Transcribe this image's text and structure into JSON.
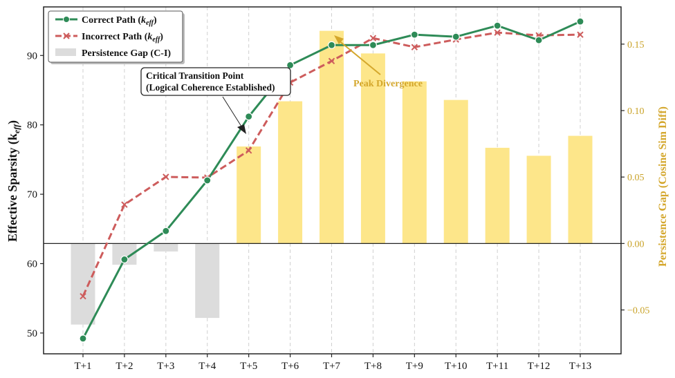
{
  "chart_data": {
    "type": "line+bar",
    "categories": [
      "T+1",
      "T+2",
      "T+3",
      "T+4",
      "T+5",
      "T+6",
      "T+7",
      "T+8",
      "T+9",
      "T+10",
      "T+11",
      "T+12",
      "T+13"
    ],
    "series": [
      {
        "name": "Correct Path (k_eff)",
        "axis": "left",
        "type": "line",
        "color": "#2e8b57",
        "values": [
          49.2,
          60.6,
          64.7,
          72.0,
          81.2,
          88.6,
          91.5,
          91.5,
          93.0,
          92.7,
          94.3,
          92.2,
          94.9
        ]
      },
      {
        "name": "Incorrect Path (k_eff)",
        "axis": "left",
        "type": "line",
        "color": "#cd5c5c",
        "values": [
          55.3,
          68.5,
          72.5,
          72.4,
          76.3,
          86.1,
          89.2,
          92.5,
          91.2,
          92.3,
          93.3,
          92.9,
          93.0
        ]
      },
      {
        "name": "Persistence Gap (C-I)",
        "axis": "right",
        "type": "bar",
        "color_pos": "#fde68a",
        "color_neg": "#dcdcdc",
        "values": [
          -0.061,
          -0.016,
          -0.006,
          -0.056,
          0.073,
          0.107,
          0.16,
          0.143,
          0.122,
          0.108,
          0.072,
          0.066,
          0.081
        ]
      }
    ],
    "ylabel_left": "Effective Sparsity (k",
    "ylabel_left_sub": "eff",
    "ylabel_left_close": ")",
    "ylabel_right": "Persistence Gap (Cosine Sim Diff)",
    "ylim_left": [
      47,
      97
    ],
    "ylim_right": [
      -0.083,
      0.178
    ],
    "yticks_left": [
      50,
      60,
      70,
      80,
      90
    ],
    "yticks_right": [
      -0.05,
      0.0,
      0.05,
      0.1,
      0.15
    ],
    "yticks_right_labels": [
      "−0.05",
      "0.00",
      "0.05",
      "0.10",
      "0.15"
    ],
    "grid": "vertical-dashed",
    "legend": {
      "position": "top-left",
      "entries": [
        {
          "label": "Correct Path (",
          "italic": "k",
          "sub": "eff",
          "close": ")"
        },
        {
          "label": "Incorrect Path (",
          "italic": "k",
          "sub": "eff",
          "close": ")"
        },
        {
          "label": "Persistence Gap (C-I)"
        }
      ]
    },
    "annotations": [
      {
        "line1": "Critical Transition Point",
        "line2": "(Logical Coherence Established)",
        "target_category": "T+5",
        "target_value": 81.2
      },
      {
        "text": "Peak Divergence",
        "target_category": "T+7",
        "target_gap": 0.16
      }
    ],
    "colors": {
      "correct": "#2e8b57",
      "incorrect": "#cd5c5c",
      "gap_pos": "#fde68a",
      "gap_neg": "#dcdcdc",
      "right_axis": "#d4a72c"
    }
  }
}
